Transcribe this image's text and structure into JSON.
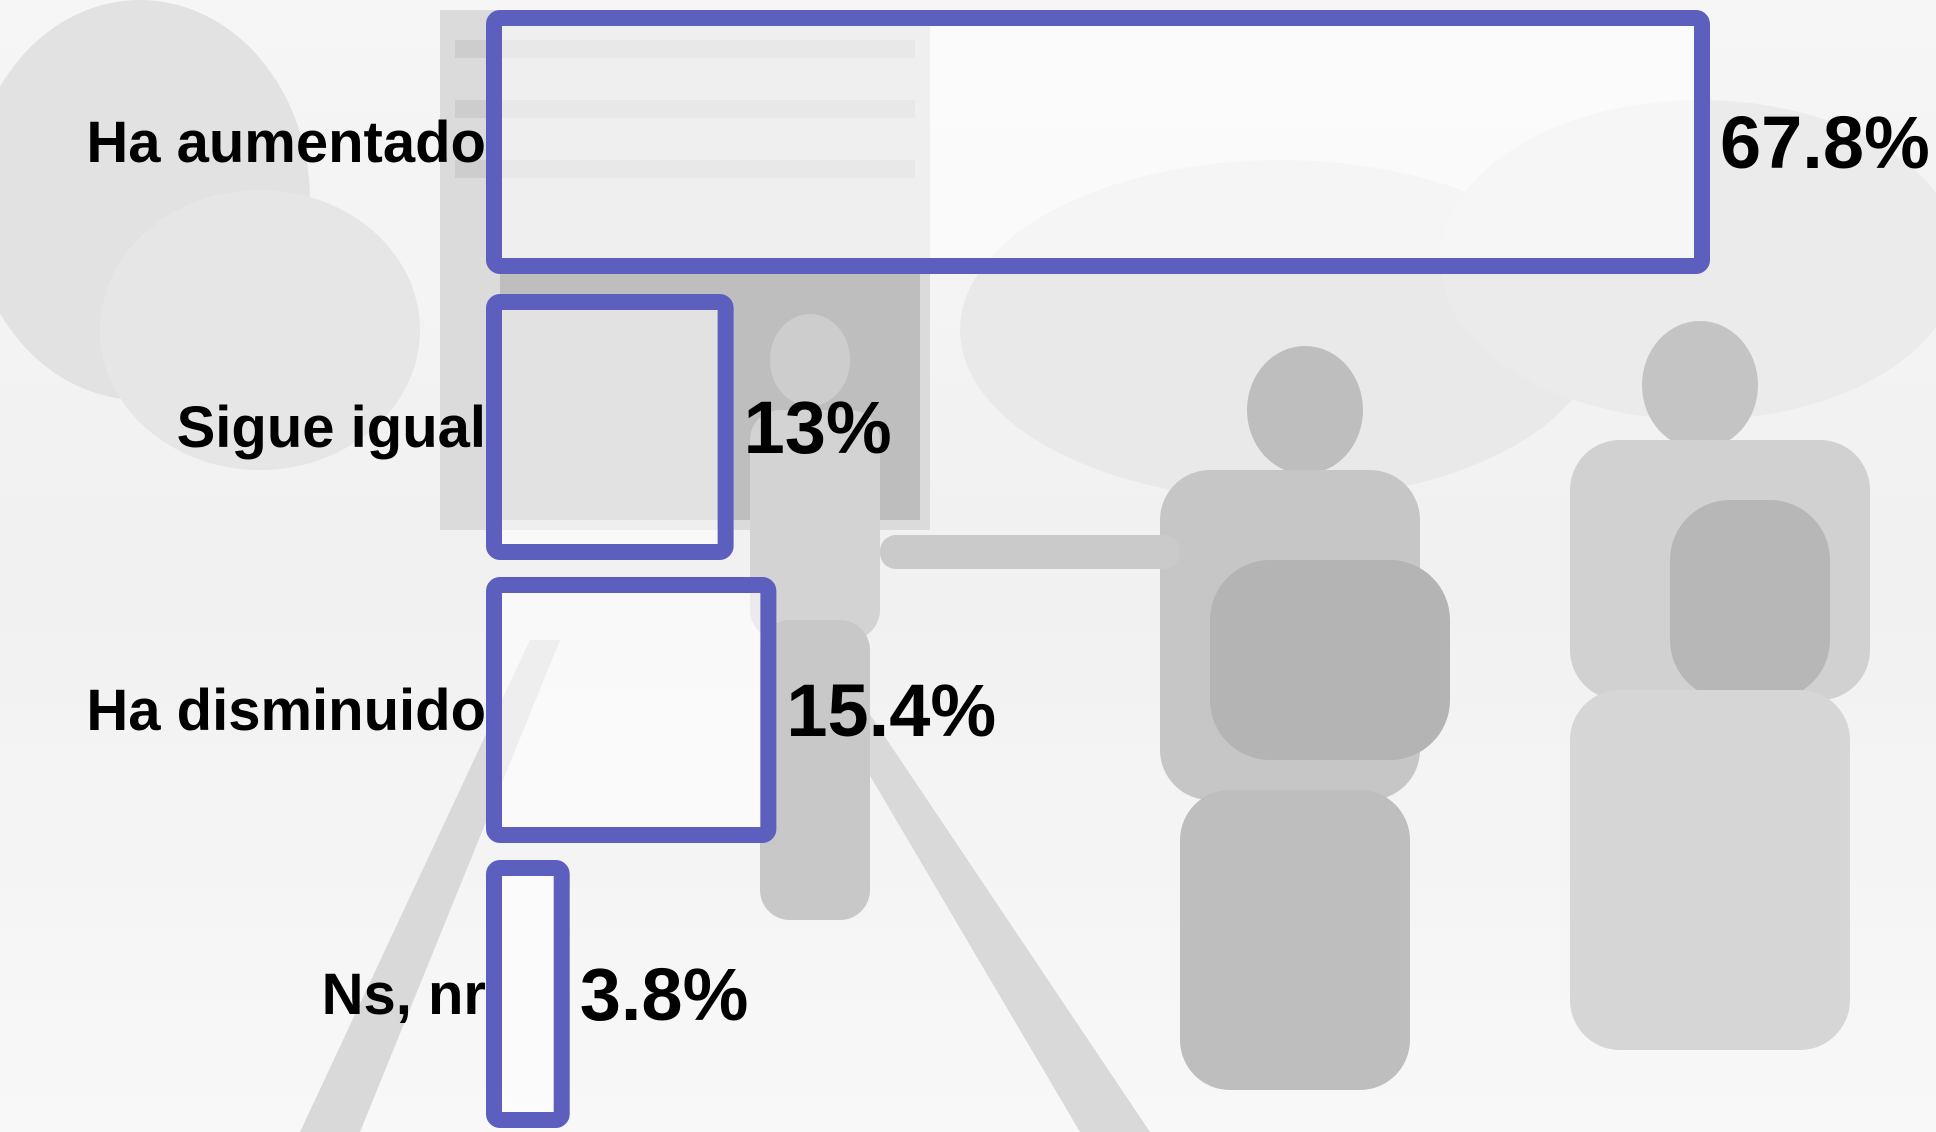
{
  "chart_data": {
    "type": "bar",
    "orientation": "horizontal",
    "categories": [
      "Ha aumentado",
      "Sigue igual",
      "Ha disminuido",
      "Ns, nr"
    ],
    "values": [
      67.8,
      13,
      15.4,
      3.8
    ],
    "value_labels": [
      "67.8%",
      "13%",
      "15.4%",
      "3.8%"
    ],
    "title": "",
    "xlabel": "",
    "ylabel": "",
    "grid": false,
    "legend": "none"
  },
  "colors": {
    "bar_stroke": "#5d5fbf",
    "bar_fill": "rgba(255,255,255,0.55)",
    "text": "#000000"
  }
}
